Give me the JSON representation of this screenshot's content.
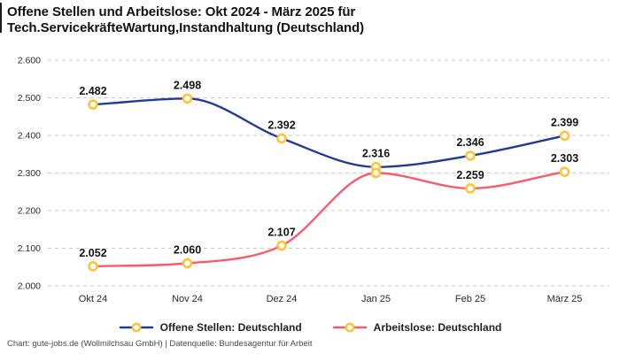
{
  "title": {
    "lines": [
      "Offene Stellen und Arbeitslose: Okt 2024 - März 2025 für",
      "Tech.ServicekräfteWartung,Instandhaltung (Deutschland)"
    ]
  },
  "footer": {
    "text": "Chart: gute-jobs.de (Wollmilchsau GmbH) | Datenquelle: Bundesagentur für Arbeit"
  },
  "legend": {
    "items": [
      {
        "label": "Offene Stellen: Deutschland",
        "color": "#233a97"
      },
      {
        "label": "Arbeitslose: Deutschland",
        "color": "#fa5a70"
      }
    ]
  },
  "colors": {
    "series_offene_stellen": "#233a97",
    "series_arbeitslose": "#fa5a70",
    "marker_ring": "#ffc233",
    "marker_fill": "#ffffff",
    "gridline": "#cbcbcb",
    "data_label_text": "#141414",
    "axis_text": "#2b2b2b",
    "title_text": "#121212",
    "footer_text": "#4a4a4a",
    "background": "#ffffff"
  },
  "chart_data": {
    "type": "line",
    "title": "Offene Stellen und Arbeitslose: Okt 2024 - März 2025 für Tech.ServicekräfteWartung,Instandhaltung (Deutschland)",
    "categories": [
      "Okt 24",
      "Nov 24",
      "Dez 24",
      "Jan 25",
      "Feb 25",
      "März 25"
    ],
    "series": [
      {
        "name": "Offene Stellen: Deutschland",
        "color": "#233a97",
        "values": [
          2482,
          2498,
          2392,
          2316,
          2346,
          2399
        ],
        "labels": [
          "2.482",
          "2.498",
          "2.392",
          "2.316",
          "2.346",
          "2.399"
        ]
      },
      {
        "name": "Arbeitslose: Deutschland",
        "color": "#fa5a70",
        "values": [
          2052,
          2060,
          2107,
          2300,
          2259,
          2303
        ],
        "labels": [
          "2.052",
          "2.060",
          "2.107",
          null,
          "2.259",
          "2.303"
        ]
      }
    ],
    "y_axis": {
      "range": [
        2000,
        2600
      ],
      "ticks": [
        2000,
        2100,
        2200,
        2300,
        2400,
        2500,
        2600
      ],
      "tick_labels": [
        "2.000",
        "2.100",
        "2.200",
        "2.300",
        "2.400",
        "2.500",
        "2.600"
      ],
      "grid": "dashed"
    },
    "x_axis": {
      "tick_labels": [
        "Okt 24",
        "Nov 24",
        "Dez 24",
        "Jan 25",
        "Feb 25",
        "März 25"
      ]
    },
    "legend_position": "bottom-center",
    "marker": {
      "shape": "ring",
      "ring_color": "#ffc233",
      "fill": "#ffffff"
    }
  }
}
